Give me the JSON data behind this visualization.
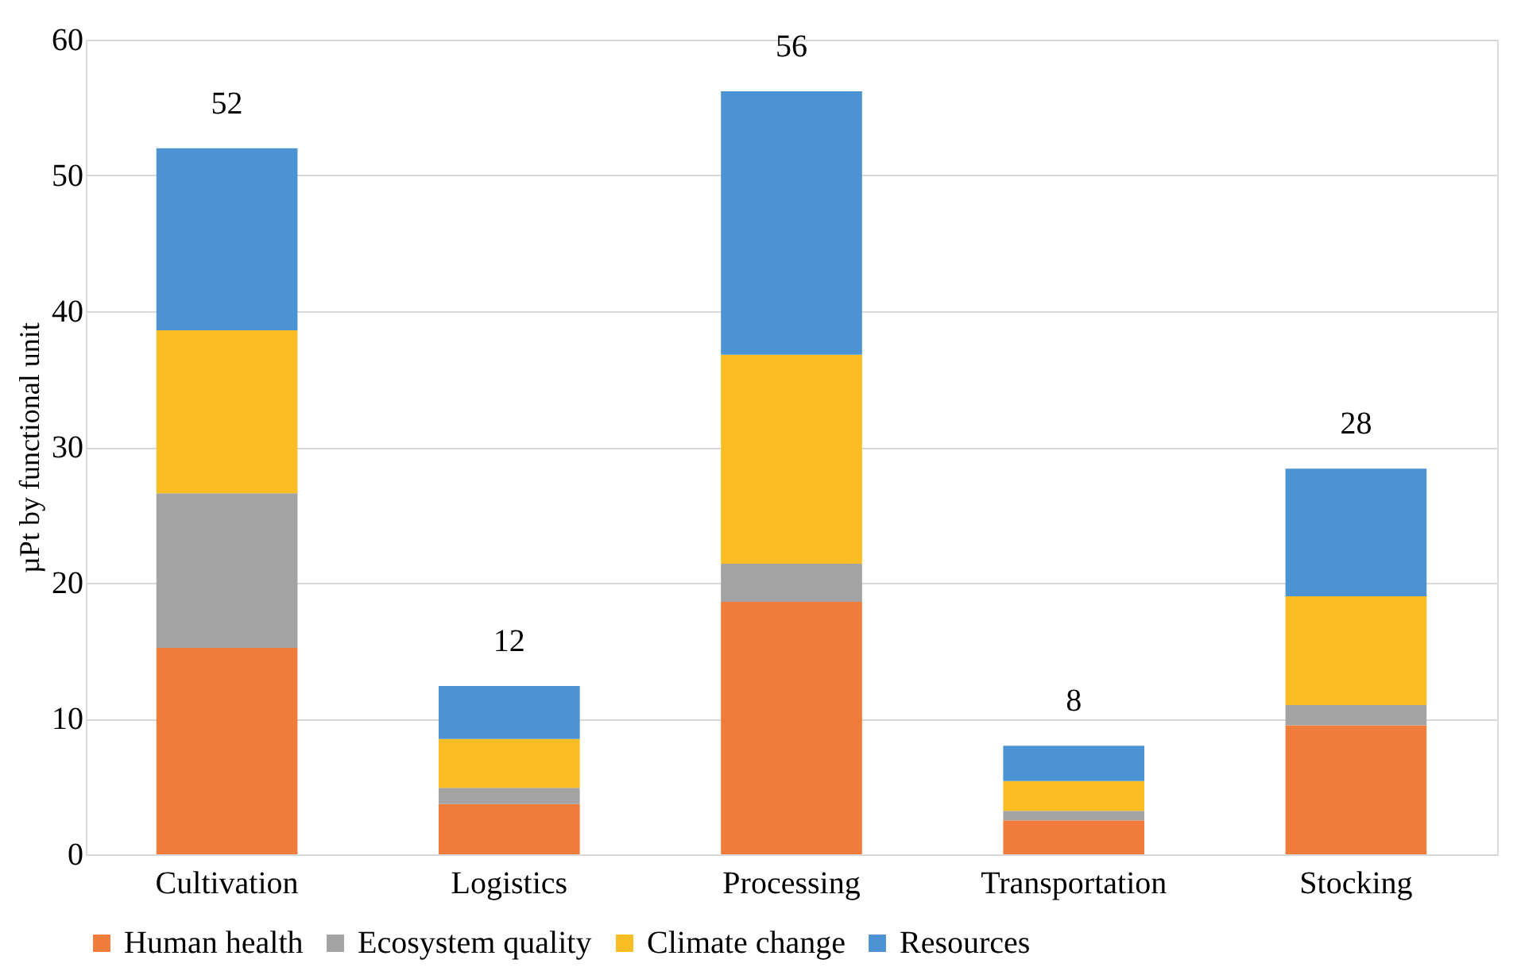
{
  "chart_data": {
    "type": "bar",
    "stacked": true,
    "ylabel": "µPt by functional unit",
    "categories": [
      "Cultivation",
      "Logistics",
      "Processing",
      "Transportation",
      "Stocking"
    ],
    "series": [
      {
        "name": "Human health",
        "color": "#f07c3c",
        "values": [
          15.2,
          3.7,
          18.6,
          2.5,
          9.5
        ]
      },
      {
        "name": "Ecosystem quality",
        "color": "#a3a3a3",
        "values": [
          11.4,
          1.2,
          2.8,
          0.7,
          1.5
        ]
      },
      {
        "name": "Climate change",
        "color": "#fbbd24",
        "values": [
          12.0,
          3.6,
          15.4,
          2.2,
          8.0
        ]
      },
      {
        "name": "Resources",
        "color": "#4b93d3",
        "values": [
          13.4,
          3.9,
          19.4,
          2.6,
          9.4
        ]
      }
    ],
    "totals": [
      "52",
      "12",
      "56",
      "8",
      "28"
    ],
    "ylim": [
      0,
      60
    ],
    "yticks": [
      0,
      10,
      20,
      30,
      40,
      50,
      60
    ],
    "grid": "y",
    "legend": "bottom"
  }
}
